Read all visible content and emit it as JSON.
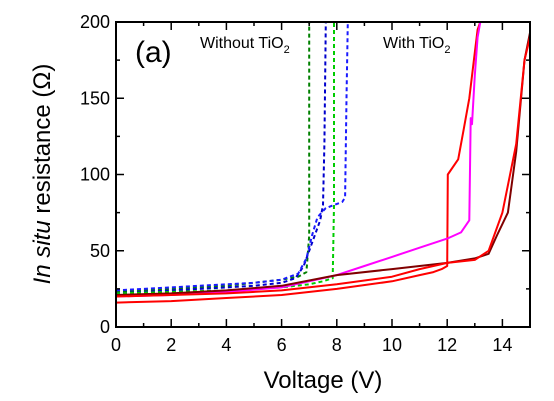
{
  "chart_data": {
    "type": "line",
    "panel_label": "(a)",
    "xlabel": "Voltage (V)",
    "ylabel_italic": "In situ",
    "ylabel_rest": " resistance (Ω)",
    "xlim": [
      0,
      15
    ],
    "ylim": [
      0,
      200
    ],
    "x_ticks": [
      "0",
      "2",
      "4",
      "6",
      "8",
      "10",
      "12",
      "14"
    ],
    "y_ticks": [
      "0",
      "50",
      "100",
      "150",
      "200"
    ],
    "grid": false,
    "annotations": [
      {
        "text": "Without TiO",
        "subscript": "2"
      },
      {
        "text": "With TiO",
        "subscript": "2"
      }
    ],
    "series": [
      {
        "color": "#008000",
        "dashed": true,
        "x": [
          0,
          1,
          2,
          3,
          4,
          5,
          6,
          6.6,
          6.9,
          7.0,
          7.0
        ],
        "y": [
          23,
          24,
          25,
          26,
          27,
          29,
          31,
          33,
          36,
          60,
          200
        ]
      },
      {
        "color": "#0000cc",
        "dashed": true,
        "x": [
          0,
          1,
          2,
          3,
          4,
          5,
          6,
          6.5,
          6.8,
          7.0,
          7.2,
          7.4,
          7.5,
          7.55,
          7.6
        ],
        "y": [
          22,
          23,
          24,
          25,
          26,
          27,
          29,
          32,
          40,
          50,
          60,
          70,
          80,
          120,
          200
        ]
      },
      {
        "color": "#1a1aff",
        "dashed": true,
        "x": [
          0,
          1,
          2,
          3,
          4,
          5,
          6,
          6.6,
          6.9,
          7.1,
          7.3,
          7.6,
          7.9,
          8.2,
          8.3,
          8.35,
          8.4
        ],
        "y": [
          24,
          25,
          26,
          27,
          28,
          29,
          31,
          35,
          45,
          60,
          72,
          78,
          80,
          82,
          85,
          150,
          200
        ]
      },
      {
        "color": "#00cc00",
        "dashed": true,
        "x": [
          0,
          2,
          4,
          6,
          7.0,
          7.5,
          7.85,
          7.9,
          7.9
        ],
        "y": [
          22,
          23,
          24,
          26,
          28,
          30,
          32,
          80,
          200
        ]
      },
      {
        "color": "#ff0000",
        "dashed": false,
        "x": [
          0,
          2,
          4,
          6,
          8,
          10,
          11,
          11.5,
          11.8,
          12.0,
          12.02,
          12.4,
          12.6,
          12.8,
          13.0,
          13.1,
          13.2
        ],
        "y": [
          16,
          17,
          19,
          21,
          25,
          30,
          34,
          36,
          38,
          40,
          100,
          110,
          130,
          150,
          180,
          195,
          200
        ]
      },
      {
        "color": "#ff00ff",
        "dashed": false,
        "x": [
          0,
          2,
          4,
          6,
          8,
          9,
          10,
          11,
          12,
          12.5,
          12.8,
          12.85,
          12.9,
          13.0,
          13.1,
          13.2
        ],
        "y": [
          20,
          21,
          23,
          26,
          34,
          40,
          46,
          52,
          58,
          62,
          70,
          137,
          133,
          165,
          190,
          200
        ]
      },
      {
        "color": "#800000",
        "dashed": false,
        "x": [
          0,
          2,
          4,
          6,
          8,
          10,
          12,
          13,
          13.5,
          13.8,
          14.2,
          14.5,
          14.8,
          15.0
        ],
        "y": [
          21,
          22,
          24,
          27,
          34,
          38,
          42,
          45,
          48,
          60,
          75,
          115,
          175,
          193
        ]
      },
      {
        "color": "#ff0000",
        "dashed": false,
        "x": [
          0,
          2,
          4,
          6,
          8,
          10,
          11,
          12,
          13,
          13.5,
          14,
          14.5,
          14.8,
          15.0
        ],
        "y": [
          20,
          21,
          22,
          24,
          28,
          33,
          38,
          42,
          44,
          50,
          75,
          120,
          175,
          190
        ]
      }
    ]
  }
}
